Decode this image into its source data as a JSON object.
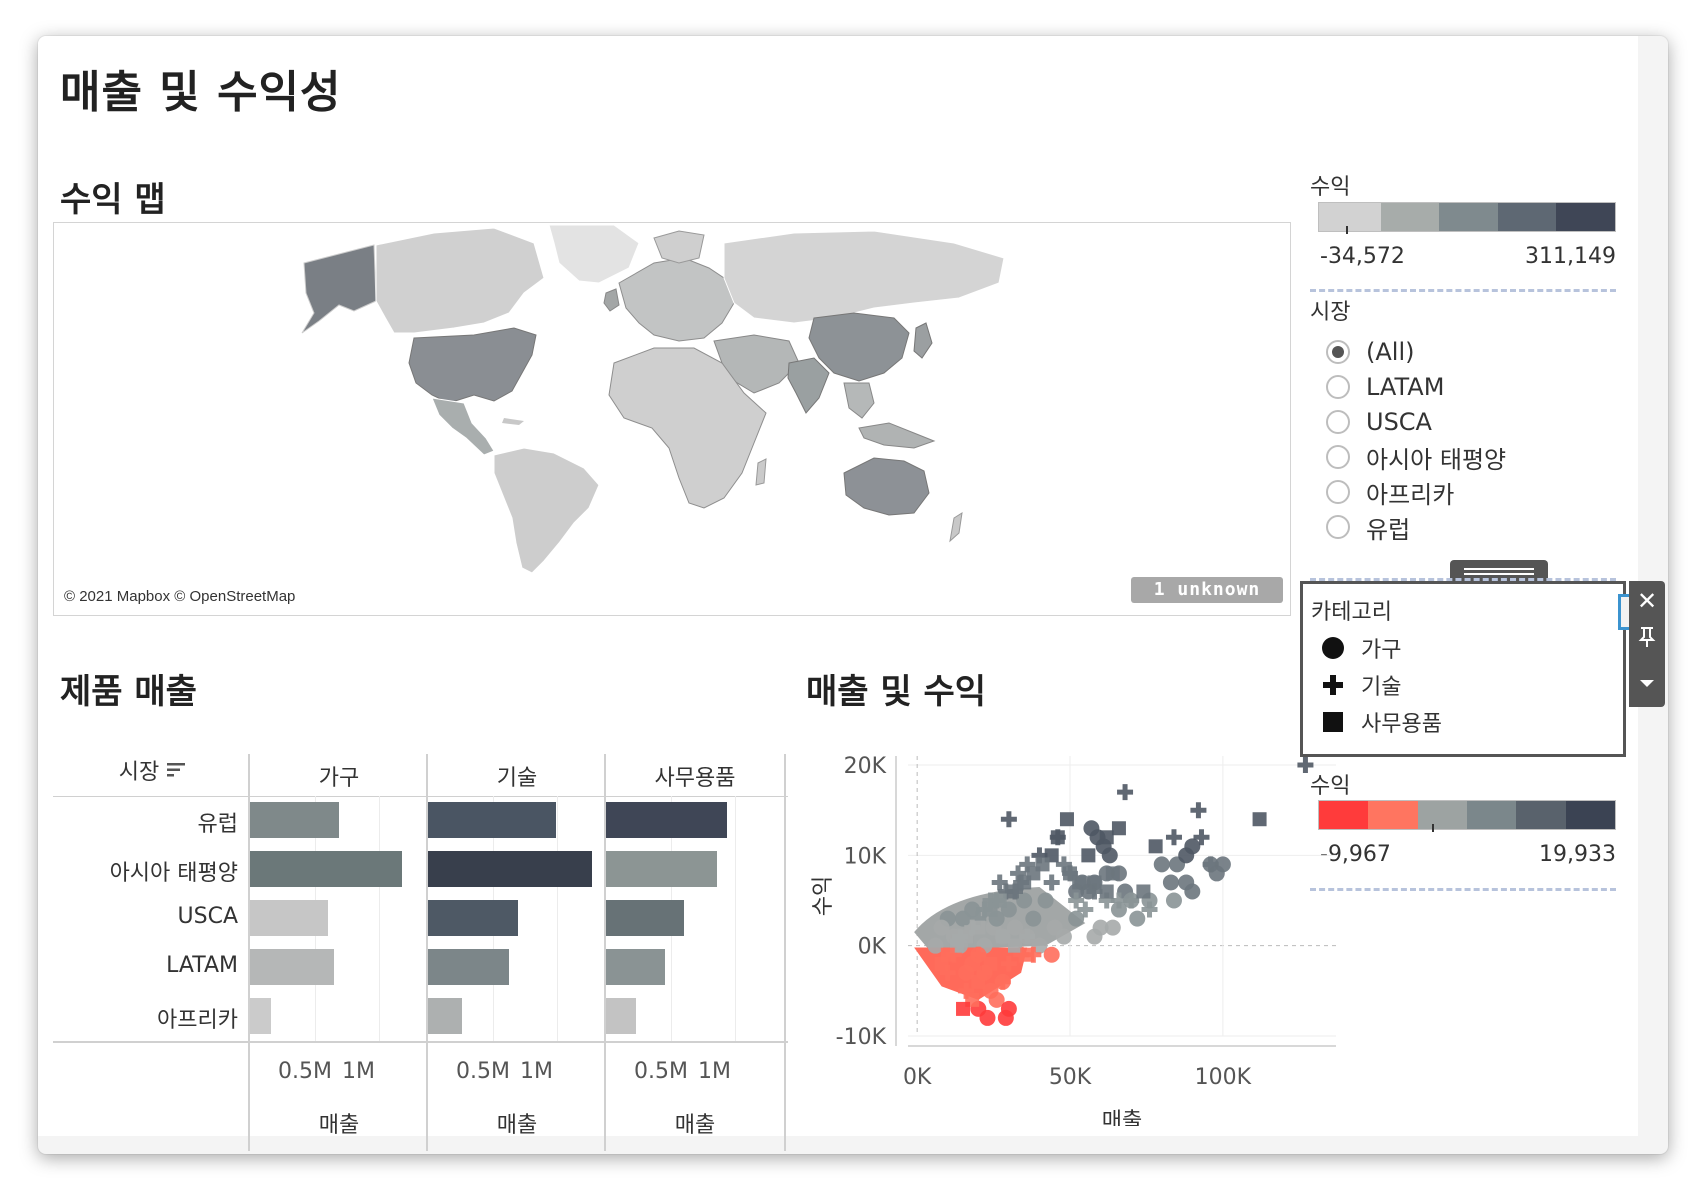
{
  "dashboard": {
    "title": "매출 및 수익성"
  },
  "map": {
    "title": "수익 맵",
    "attribution": "© 2021 Mapbox © OpenStreetMap",
    "unknown_badge": "1 unknown"
  },
  "profit_legend_map": {
    "title": "수익",
    "min_label": "-34,572",
    "max_label": "311,149",
    "colors": [
      "#d2d2d2",
      "#a7acaa",
      "#7f8a8e",
      "#5e6873",
      "#3f4656"
    ]
  },
  "market_filter": {
    "title": "시장",
    "selected": "(All)",
    "options": [
      "(All)",
      "LATAM",
      "USCA",
      "아시아 태평양",
      "아프리카",
      "유럽"
    ]
  },
  "category_legend": {
    "title": "카테고리",
    "items": [
      {
        "label": "가구",
        "shape": "circle"
      },
      {
        "label": "기술",
        "shape": "plus"
      },
      {
        "label": "사무용품",
        "shape": "square"
      }
    ]
  },
  "profit_legend_scatter": {
    "title": "수익",
    "min_label": "-9,967",
    "max_label": "19,933",
    "colors": [
      "#ff3b3b",
      "#ff7560",
      "#9da3a2",
      "#7b878b",
      "#59626c",
      "#3b4353"
    ]
  },
  "product_sales": {
    "title": "제품 매출",
    "row_header": "시장",
    "columns": [
      "가구",
      "기술",
      "사무용품"
    ],
    "rows": [
      "유럽",
      "아시아 태평양",
      "USCA",
      "LATAM",
      "아프리카"
    ],
    "axis_ticks": [
      "0.5M",
      "1M"
    ],
    "axis_title": "매출",
    "values_m": [
      [
        0.69,
        0.99,
        0.94
      ],
      [
        1.18,
        1.27,
        0.86
      ],
      [
        0.6,
        0.7,
        0.6
      ],
      [
        0.65,
        0.63,
        0.46
      ],
      [
        0.16,
        0.26,
        0.23
      ]
    ],
    "colors": [
      [
        "#7f898a",
        "#4a5563",
        "#3f4656"
      ],
      [
        "#6b7879",
        "#383f4c",
        "#8c9594"
      ],
      [
        "#c6c6c6",
        "#4e5965",
        "#677276"
      ],
      [
        "#b5b7b7",
        "#7c8689",
        "#8a9394"
      ],
      [
        "#cbcbcb",
        "#adb0b0",
        "#c3c3c3"
      ]
    ]
  },
  "sales_profit": {
    "title": "매출 및 수익",
    "xlabel": "매출",
    "ylabel": "수익",
    "x_ticks": [
      "0K",
      "50K",
      "100K"
    ],
    "y_ticks": [
      "20K",
      "10K",
      "0K",
      "-10K"
    ]
  },
  "chart_data": [
    {
      "type": "bar",
      "title": "제품 매출",
      "categories": [
        "유럽",
        "아시아 태평양",
        "USCA",
        "LATAM",
        "아프리카"
      ],
      "series": [
        {
          "name": "가구",
          "values": [
            0.69,
            1.18,
            0.6,
            0.65,
            0.16
          ]
        },
        {
          "name": "기술",
          "values": [
            0.99,
            1.27,
            0.7,
            0.63,
            0.26
          ]
        },
        {
          "name": "사무용품",
          "values": [
            0.94,
            0.86,
            0.6,
            0.46,
            0.23
          ]
        }
      ],
      "xlabel": "매출",
      "ylabel": "시장",
      "xlim": [
        0,
        1.3
      ]
    },
    {
      "type": "scatter",
      "title": "매출 및 수익",
      "xlabel": "매출",
      "ylabel": "수익",
      "xlim": [
        -3000,
        137000
      ],
      "ylim": [
        -10000,
        21000
      ],
      "series": [
        {
          "name": "가구",
          "points": [
            [
              57,
              13
            ],
            [
              59,
              12
            ],
            [
              61,
              11
            ],
            [
              63,
              10
            ],
            [
              62,
              8
            ],
            [
              58,
              7
            ],
            [
              66,
              8
            ],
            [
              68,
              6
            ],
            [
              80,
              9
            ],
            [
              85,
              9
            ],
            [
              88,
              10
            ],
            [
              90,
              11
            ],
            [
              83,
              7
            ],
            [
              88,
              7
            ],
            [
              96,
              9
            ],
            [
              100,
              9
            ],
            [
              98,
              8
            ],
            [
              84,
              5
            ],
            [
              90,
              6
            ],
            [
              52,
              6
            ],
            [
              54,
              7
            ],
            [
              56,
              6
            ],
            [
              45,
              2
            ],
            [
              48,
              1
            ],
            [
              42,
              5
            ],
            [
              38,
              3
            ],
            [
              35,
              5
            ],
            [
              30,
              4
            ],
            [
              28,
              1
            ],
            [
              25,
              2
            ],
            [
              22,
              0
            ],
            [
              20,
              -1
            ],
            [
              18,
              -2
            ],
            [
              22,
              -3
            ],
            [
              24,
              -5
            ],
            [
              26,
              -6
            ],
            [
              28,
              -4
            ],
            [
              30,
              -7
            ],
            [
              20,
              -7
            ],
            [
              23,
              -8
            ],
            [
              29,
              -8
            ],
            [
              16,
              -3
            ],
            [
              14,
              0
            ],
            [
              12,
              1
            ],
            [
              10,
              3
            ],
            [
              8,
              2
            ],
            [
              6,
              0
            ],
            [
              15,
              3
            ],
            [
              18,
              4
            ],
            [
              26,
              3
            ],
            [
              32,
              2
            ],
            [
              36,
              1
            ],
            [
              40,
              0
            ],
            [
              44,
              -1
            ],
            [
              52,
              3
            ],
            [
              58,
              1
            ],
            [
              60,
              2
            ],
            [
              66,
              4
            ],
            [
              64,
              2
            ],
            [
              70,
              5
            ],
            [
              72,
              3
            ],
            [
              76,
              5
            ]
          ]
        },
        {
          "name": "기술",
          "points": [
            [
              127,
              20
            ],
            [
              68,
              17
            ],
            [
              92,
              15
            ],
            [
              30,
              14
            ],
            [
              46,
              12
            ],
            [
              40,
              10
            ],
            [
              36,
              9
            ],
            [
              33,
              8
            ],
            [
              34,
              7
            ],
            [
              32,
              6
            ],
            [
              29,
              6
            ],
            [
              27,
              7
            ],
            [
              26,
              5
            ],
            [
              24,
              5
            ],
            [
              22,
              4
            ],
            [
              20,
              3
            ],
            [
              18,
              2
            ],
            [
              48,
              9
            ],
            [
              50,
              8
            ],
            [
              44,
              7
            ],
            [
              52,
              5
            ],
            [
              55,
              4
            ],
            [
              58,
              6
            ],
            [
              62,
              5
            ],
            [
              66,
              5
            ],
            [
              70,
              5
            ],
            [
              76,
              4
            ],
            [
              84,
              12
            ],
            [
              96,
              9
            ],
            [
              93,
              12
            ],
            [
              20,
              -1
            ],
            [
              22,
              -3
            ],
            [
              16,
              -5
            ],
            [
              28,
              -4
            ],
            [
              30,
              -2
            ],
            [
              34,
              -1
            ],
            [
              38,
              -1
            ],
            [
              36,
              1
            ],
            [
              14,
              1
            ],
            [
              12,
              -1
            ],
            [
              10,
              -3
            ]
          ]
        },
        {
          "name": "사무용품",
          "points": [
            [
              112,
              14
            ],
            [
              49,
              14
            ],
            [
              46,
              12
            ],
            [
              78,
              11
            ],
            [
              66,
              13
            ],
            [
              62,
              12
            ],
            [
              44,
              10
            ],
            [
              41,
              9
            ],
            [
              38,
              8
            ],
            [
              35,
              7
            ],
            [
              31,
              6
            ],
            [
              27,
              5
            ],
            [
              24,
              4
            ],
            [
              20,
              2
            ],
            [
              16,
              1
            ],
            [
              13,
              0
            ],
            [
              10,
              -1
            ],
            [
              8,
              -2
            ],
            [
              56,
              10
            ],
            [
              50,
              8
            ],
            [
              53,
              7
            ],
            [
              58,
              7
            ],
            [
              62,
              6
            ],
            [
              64,
              8
            ],
            [
              74,
              6
            ],
            [
              28,
              1
            ],
            [
              32,
              0
            ],
            [
              36,
              -1
            ],
            [
              24,
              -2
            ],
            [
              20,
              -4
            ],
            [
              18,
              -6
            ],
            [
              15,
              -7
            ]
          ]
        }
      ]
    }
  ]
}
